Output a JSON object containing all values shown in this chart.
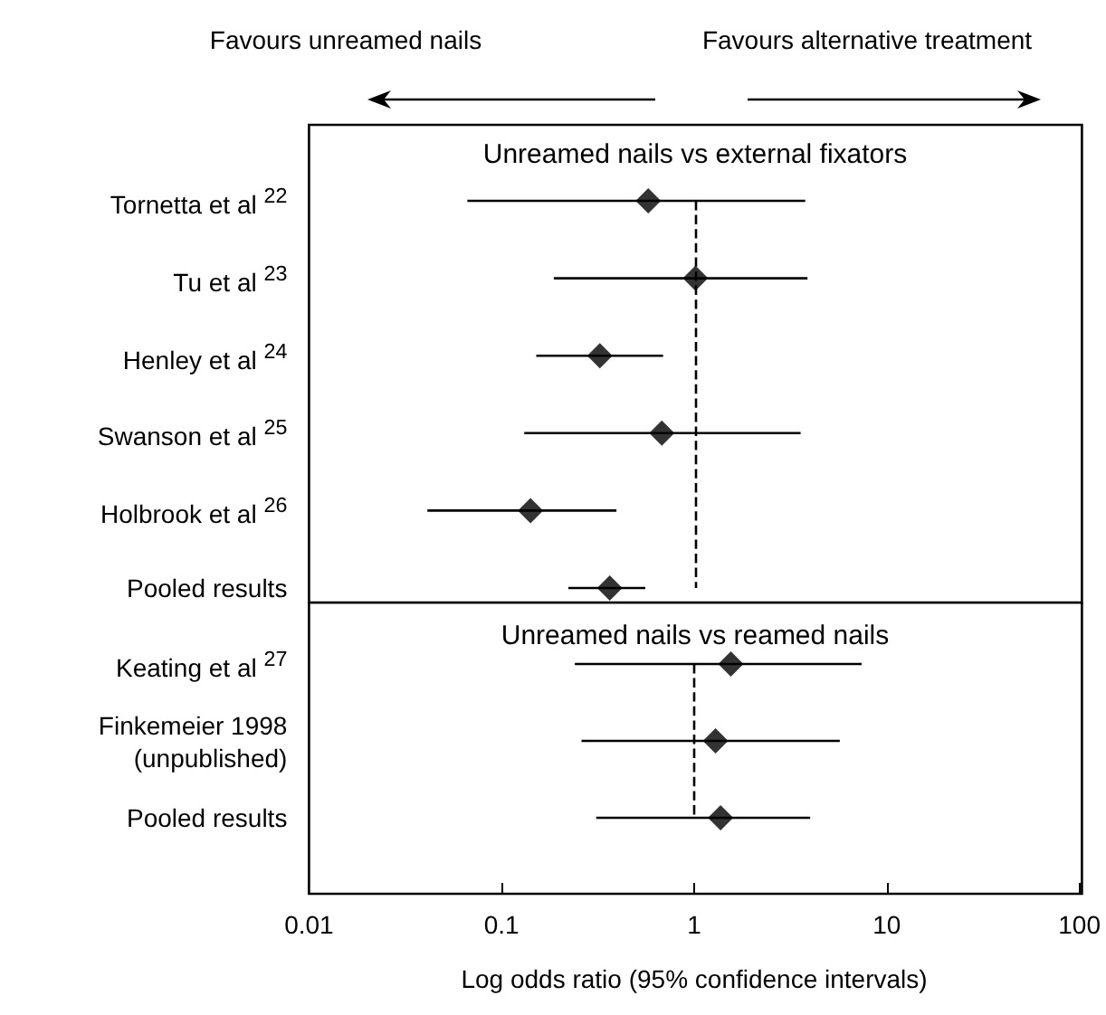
{
  "chart_data": [
    {
      "type": "scatter",
      "orientation": "horizontal",
      "title": "Unreamed nails vs external fixators",
      "annotations": [
        "Favours unreamed nails",
        "Favours alternative treatment"
      ],
      "categories": [
        "Tornetta et al $^{22}$",
        "Tu et al $^{23}$",
        "Henley et al $^{24}$",
        "Swanson et al $^{25}$",
        "Holbrook et al $^{26}$",
        "Pooled results"
      ],
      "values": [
        0.57,
        1.0,
        0.32,
        0.67,
        0.14,
        0.36
      ],
      "errors": [
        [
          0.066,
          3.7
        ],
        [
          0.185,
          3.8
        ],
        [
          0.15,
          0.68
        ],
        [
          0.13,
          3.5
        ],
        [
          0.041,
          0.39
        ],
        [
          0.22,
          0.55
        ]
      ],
      "color": "#000000",
      "marker": "diamond",
      "log": "x",
      "xlim": [
        0.01,
        100
      ],
      "tick_labels": "y",
      "ref_lines": [
        {
          "axis": "x",
          "value": 1,
          "line_style": "dashed"
        }
      ]
    },
    {
      "type": "scatter",
      "orientation": "horizontal",
      "title": "Unreamed nails vs reamed nails",
      "xlabel": "Log odds ratio (95% confidence intervals)",
      "categories": [
        "Keating et al $^{27}$",
        "Finkemeier 1998\n(unpublished)",
        "Pooled results"
      ],
      "values": [
        1.55,
        1.29,
        1.37
      ],
      "errors": [
        [
          0.24,
          7.4
        ],
        [
          0.26,
          5.7
        ],
        [
          0.31,
          4.0
        ]
      ],
      "color": "#000000",
      "marker": "diamond",
      "log": "x",
      "xlim": [
        0.01,
        100
      ],
      "xticks": [
        0.01,
        0.1,
        1,
        10,
        100
      ],
      "ref_lines": [
        {
          "axis": "x",
          "value": 1,
          "line_style": "dashed"
        }
      ]
    }
  ]
}
